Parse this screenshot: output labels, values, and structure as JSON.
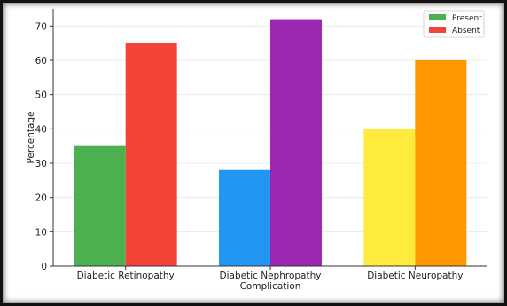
{
  "chart_data": {
    "type": "bar",
    "categories": [
      "Diabetic Retinopathy",
      "Diabetic Nephropathy",
      "Diabetic Neuropathy"
    ],
    "series": [
      {
        "name": "Present",
        "values": [
          35,
          28,
          40
        ],
        "colors": [
          "#4caf50",
          "#2196f3",
          "#ffeb3b"
        ]
      },
      {
        "name": "Absent",
        "values": [
          65,
          72,
          60
        ],
        "colors": [
          "#f44336",
          "#9c27b0",
          "#ff9800"
        ]
      }
    ],
    "xlabel": "Complication",
    "ylabel": "Percentage",
    "ylim": [
      0,
      75
    ],
    "yticks": [
      0,
      10,
      20,
      30,
      40,
      50,
      60,
      70
    ],
    "grid": true,
    "legend": {
      "position": "top-right",
      "entries": [
        {
          "label": "Present",
          "color": "#4caf50"
        },
        {
          "label": "Absent",
          "color": "#f44336"
        }
      ]
    }
  }
}
